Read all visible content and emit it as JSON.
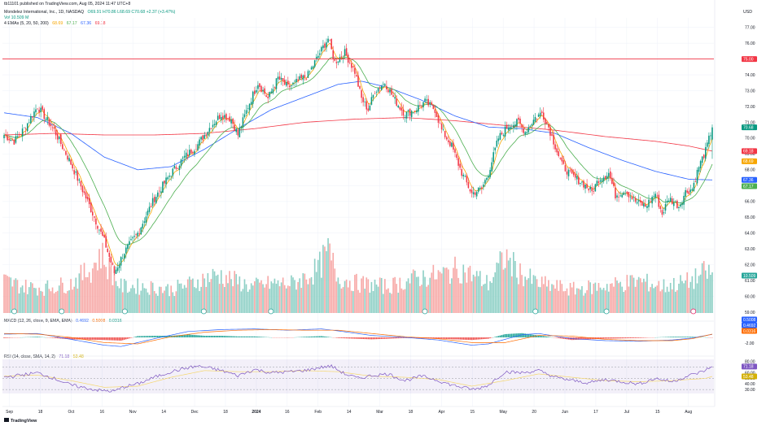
{
  "header": {
    "published": "tb11101 published on TradingView.com, Aug 05, 2024 11:47 UTC+8",
    "symbol": "Mondelez International, Inc., 1D, NASDAQ",
    "ohlc": "O69.91 H70.86 L68.69 C70.68 +2.37 (+3.47%)",
    "vol": "Vol  10.509 M",
    "emas_title": "4 EMAs (5, 20, 50, 200)",
    "emas_values": [
      "68.69",
      "67.17",
      "67.36",
      "69.18"
    ],
    "macd_title": "MACD (12, 26, close, 9, EMA, EMA)",
    "macd_values": [
      "0.4692",
      "0.5008",
      "0.0316"
    ],
    "rsi_title": "RSI (14, close, SMA, 14, 2)",
    "rsi_values": [
      "71.18",
      "53.48"
    ],
    "currency": "USD"
  },
  "colors": {
    "up": "#089981",
    "down": "#f23645",
    "ema5": "#f7a600",
    "ema20": "#4caf50",
    "ema50": "#2962ff",
    "ema200": "#f23645",
    "macd": "#2962ff",
    "signal": "#ff6d00",
    "rsi": "#7e57c2",
    "rsi_ma": "#f5d76e"
  },
  "chart_data": {
    "type": "candlestick",
    "y_ticks": [
      "77.00",
      "76.00",
      "75.00",
      "74.00",
      "73.00",
      "72.00",
      "71.00",
      "70.00",
      "69.00",
      "68.00",
      "67.00",
      "66.00",
      "65.00",
      "64.00",
      "63.00",
      "62.00",
      "61.00",
      "60.00",
      "59.00"
    ],
    "ylim": [
      59,
      77.6
    ],
    "x_ticks": [
      "Sep",
      "18",
      "Oct",
      "16",
      "Nov",
      "14",
      "Dec",
      "18",
      "2024",
      "16",
      "Feb",
      "14",
      "Mar",
      "18",
      "Apr",
      "15",
      "May",
      "20",
      "Jun",
      "17",
      "Jul",
      "15",
      "Aug"
    ],
    "horizontal_line": {
      "value": 75.0,
      "label": "75.00"
    },
    "price_labels": [
      {
        "value": 70.68,
        "label": "70.68",
        "color": "#089981"
      },
      {
        "value": 69.18,
        "label": "69.18",
        "color": "#f23645"
      },
      {
        "value": 68.69,
        "label": "68.69",
        "color": "#f7a600"
      },
      {
        "value": 67.36,
        "label": "67.36",
        "color": "#2962ff"
      },
      {
        "value": 67.17,
        "label": "67.17",
        "color": "#4caf50"
      }
    ],
    "volume_label": "10.509 M",
    "rsi_ticks": [
      "80.00",
      "70.00",
      "60.00",
      "50.00",
      "40.00",
      "30.00"
    ],
    "rsi_labels": [
      "71.18",
      "53.48"
    ],
    "macd_ticks": [
      "-2.00"
    ],
    "macd_labels": [
      "0.5008",
      "0.4692",
      "0.0316"
    ],
    "close_anchors": [
      [
        0,
        70.2
      ],
      [
        6,
        69.8
      ],
      [
        12,
        70.6
      ],
      [
        20,
        72.0
      ],
      [
        30,
        70.5
      ],
      [
        40,
        68.4
      ],
      [
        50,
        66.0
      ],
      [
        60,
        63.5
      ],
      [
        66,
        61.5
      ],
      [
        72,
        62.8
      ],
      [
        80,
        64.0
      ],
      [
        90,
        66.2
      ],
      [
        100,
        67.8
      ],
      [
        108,
        68.8
      ],
      [
        116,
        69.6
      ],
      [
        124,
        70.8
      ],
      [
        130,
        71.5
      ],
      [
        136,
        71.2
      ],
      [
        140,
        70.2
      ],
      [
        146,
        72.0
      ],
      [
        152,
        73.5
      ],
      [
        158,
        72.5
      ],
      [
        164,
        73.8
      ],
      [
        170,
        73.2
      ],
      [
        176,
        73.6
      ],
      [
        182,
        74.0
      ],
      [
        188,
        75.2
      ],
      [
        194,
        76.3
      ],
      [
        198,
        74.8
      ],
      [
        204,
        75.4
      ],
      [
        210,
        74.2
      ],
      [
        214,
        72.5
      ],
      [
        218,
        71.8
      ],
      [
        222,
        73.0
      ],
      [
        228,
        73.5
      ],
      [
        234,
        72.4
      ],
      [
        240,
        71.5
      ],
      [
        246,
        71.8
      ],
      [
        252,
        72.3
      ],
      [
        258,
        71.8
      ],
      [
        262,
        70.5
      ],
      [
        268,
        69.5
      ],
      [
        274,
        67.8
      ],
      [
        280,
        66.5
      ],
      [
        286,
        66.8
      ],
      [
        290,
        67.8
      ],
      [
        296,
        70.0
      ],
      [
        302,
        70.8
      ],
      [
        308,
        71.0
      ],
      [
        312,
        70.4
      ],
      [
        318,
        71.3
      ],
      [
        322,
        71.6
      ],
      [
        326,
        70.7
      ],
      [
        330,
        69.5
      ],
      [
        334,
        68.3
      ],
      [
        340,
        67.6
      ],
      [
        346,
        67.2
      ],
      [
        352,
        66.6
      ],
      [
        356,
        67.4
      ],
      [
        362,
        67.8
      ],
      [
        366,
        66.4
      ],
      [
        372,
        66.7
      ],
      [
        378,
        66.0
      ],
      [
        384,
        65.7
      ],
      [
        390,
        66.5
      ],
      [
        394,
        65.2
      ],
      [
        398,
        66.2
      ],
      [
        404,
        65.7
      ],
      [
        408,
        66.6
      ],
      [
        412,
        66.8
      ],
      [
        416,
        68.2
      ],
      [
        420,
        69.2
      ],
      [
        424,
        70.68
      ]
    ],
    "volume_anchors": [
      [
        0,
        1.1
      ],
      [
        12,
        0.9
      ],
      [
        24,
        0.85
      ],
      [
        40,
        1.0
      ],
      [
        52,
        1.5
      ],
      [
        58,
        2.0
      ],
      [
        62,
        1.6
      ],
      [
        70,
        0.9
      ],
      [
        84,
        0.9
      ],
      [
        100,
        0.8
      ],
      [
        112,
        1.0
      ],
      [
        128,
        1.3
      ],
      [
        138,
        1.1
      ],
      [
        148,
        0.9
      ],
      [
        160,
        1.0
      ],
      [
        172,
        1.0
      ],
      [
        180,
        1.2
      ],
      [
        188,
        1.5
      ],
      [
        194,
        2.1
      ],
      [
        200,
        1.2
      ],
      [
        212,
        1.0
      ],
      [
        230,
        0.9
      ],
      [
        248,
        1.2
      ],
      [
        262,
        1.3
      ],
      [
        272,
        1.5
      ],
      [
        280,
        1.3
      ],
      [
        290,
        1.0
      ],
      [
        300,
        1.9
      ],
      [
        310,
        1.3
      ],
      [
        320,
        1.0
      ],
      [
        340,
        0.8
      ],
      [
        356,
        0.9
      ],
      [
        370,
        1.0
      ],
      [
        380,
        1.1
      ],
      [
        394,
        0.9
      ],
      [
        404,
        1.0
      ],
      [
        412,
        1.1
      ],
      [
        420,
        1.4
      ],
      [
        424,
        1.3
      ]
    ],
    "rsi_anchors": [
      [
        0,
        52
      ],
      [
        10,
        56
      ],
      [
        20,
        60
      ],
      [
        30,
        50
      ],
      [
        40,
        38
      ],
      [
        50,
        32
      ],
      [
        58,
        28
      ],
      [
        66,
        27
      ],
      [
        72,
        35
      ],
      [
        80,
        40
      ],
      [
        90,
        52
      ],
      [
        100,
        62
      ],
      [
        110,
        69
      ],
      [
        116,
        72
      ],
      [
        124,
        68
      ],
      [
        130,
        64
      ],
      [
        140,
        55
      ],
      [
        150,
        66
      ],
      [
        160,
        60
      ],
      [
        172,
        62
      ],
      [
        182,
        65
      ],
      [
        190,
        70
      ],
      [
        196,
        72
      ],
      [
        204,
        58
      ],
      [
        212,
        50
      ],
      [
        220,
        55
      ],
      [
        230,
        58
      ],
      [
        240,
        46
      ],
      [
        250,
        54
      ],
      [
        258,
        48
      ],
      [
        266,
        40
      ],
      [
        274,
        34
      ],
      [
        282,
        30
      ],
      [
        290,
        38
      ],
      [
        300,
        62
      ],
      [
        310,
        60
      ],
      [
        320,
        64
      ],
      [
        330,
        52
      ],
      [
        340,
        46
      ],
      [
        350,
        42
      ],
      [
        360,
        48
      ],
      [
        370,
        44
      ],
      [
        380,
        40
      ],
      [
        390,
        50
      ],
      [
        400,
        44
      ],
      [
        410,
        55
      ],
      [
        418,
        62
      ],
      [
        424,
        71.2
      ]
    ],
    "rsi_ma_anchors": [
      [
        0,
        54
      ],
      [
        20,
        56
      ],
      [
        40,
        46
      ],
      [
        60,
        34
      ],
      [
        80,
        36
      ],
      [
        100,
        52
      ],
      [
        120,
        64
      ],
      [
        140,
        62
      ],
      [
        160,
        62
      ],
      [
        180,
        64
      ],
      [
        200,
        62
      ],
      [
        220,
        54
      ],
      [
        240,
        52
      ],
      [
        260,
        48
      ],
      [
        280,
        36
      ],
      [
        300,
        46
      ],
      [
        320,
        58
      ],
      [
        340,
        52
      ],
      [
        360,
        46
      ],
      [
        380,
        44
      ],
      [
        400,
        46
      ],
      [
        420,
        50
      ],
      [
        424,
        53.5
      ]
    ],
    "macd_anchors": [
      [
        0,
        0.5
      ],
      [
        20,
        0.6
      ],
      [
        40,
        -0.3
      ],
      [
        60,
        -1.2
      ],
      [
        70,
        -1.4
      ],
      [
        90,
        -0.2
      ],
      [
        110,
        0.9
      ],
      [
        130,
        1.2
      ],
      [
        150,
        1.3
      ],
      [
        170,
        1.1
      ],
      [
        190,
        1.3
      ],
      [
        200,
        1.0
      ],
      [
        220,
        0.3
      ],
      [
        240,
        0.0
      ],
      [
        260,
        -0.4
      ],
      [
        280,
        -1.2
      ],
      [
        290,
        -1.0
      ],
      [
        310,
        0.4
      ],
      [
        320,
        0.6
      ],
      [
        340,
        -0.2
      ],
      [
        360,
        -0.5
      ],
      [
        380,
        -0.6
      ],
      [
        400,
        -0.4
      ],
      [
        412,
        -0.1
      ],
      [
        424,
        0.47
      ]
    ],
    "signal_anchors": [
      [
        0,
        0.6
      ],
      [
        20,
        0.5
      ],
      [
        40,
        0.0
      ],
      [
        60,
        -0.8
      ],
      [
        80,
        -1.0
      ],
      [
        100,
        0.1
      ],
      [
        120,
        0.8
      ],
      [
        140,
        1.1
      ],
      [
        160,
        1.2
      ],
      [
        180,
        1.1
      ],
      [
        200,
        1.1
      ],
      [
        220,
        0.6
      ],
      [
        240,
        0.1
      ],
      [
        260,
        -0.2
      ],
      [
        280,
        -0.8
      ],
      [
        300,
        -0.8
      ],
      [
        320,
        0.3
      ],
      [
        340,
        0.2
      ],
      [
        360,
        -0.3
      ],
      [
        380,
        -0.5
      ],
      [
        400,
        -0.5
      ],
      [
        412,
        -0.2
      ],
      [
        424,
        0.5
      ]
    ],
    "ema50_anchors": [
      [
        0,
        71.6
      ],
      [
        20,
        71.3
      ],
      [
        40,
        70.3
      ],
      [
        60,
        68.8
      ],
      [
        80,
        68.0
      ],
      [
        100,
        68.2
      ],
      [
        120,
        69.3
      ],
      [
        140,
        70.6
      ],
      [
        160,
        71.8
      ],
      [
        180,
        72.6
      ],
      [
        200,
        73.4
      ],
      [
        214,
        73.6
      ],
      [
        230,
        73.2
      ],
      [
        250,
        72.4
      ],
      [
        270,
        71.4
      ],
      [
        290,
        70.7
      ],
      [
        310,
        70.6
      ],
      [
        330,
        70.3
      ],
      [
        350,
        69.4
      ],
      [
        370,
        68.6
      ],
      [
        390,
        67.9
      ],
      [
        410,
        67.4
      ],
      [
        424,
        67.36
      ]
    ],
    "ema200_anchors": [
      [
        0,
        70.2
      ],
      [
        30,
        70.3
      ],
      [
        60,
        70.2
      ],
      [
        90,
        70.2
      ],
      [
        120,
        70.3
      ],
      [
        150,
        70.6
      ],
      [
        180,
        71.0
      ],
      [
        210,
        71.2
      ],
      [
        240,
        71.3
      ],
      [
        270,
        71.1
      ],
      [
        300,
        70.8
      ],
      [
        330,
        70.5
      ],
      [
        360,
        70.1
      ],
      [
        390,
        69.8
      ],
      [
        410,
        69.5
      ],
      [
        424,
        69.18
      ]
    ],
    "bars": 425
  }
}
